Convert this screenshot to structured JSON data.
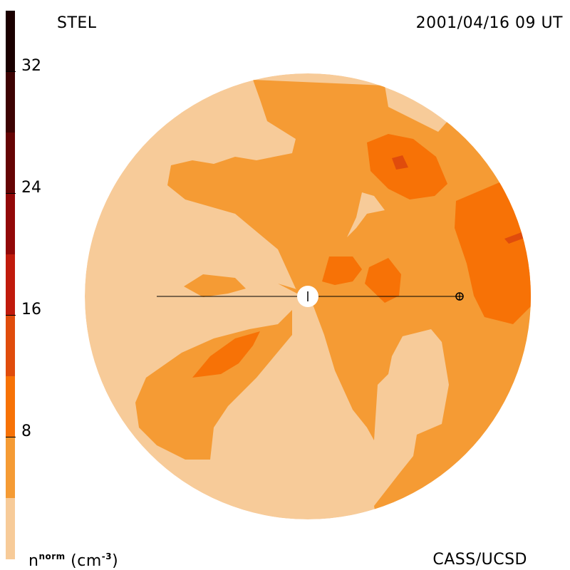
{
  "header": {
    "instrument": "STEL",
    "timestamp": "2001/04/16 09 UT"
  },
  "footer": {
    "credit": "CASS/UCSD",
    "unit_base": "n",
    "unit_sup": "norm",
    "unit_tail": " (cm",
    "unit_exp": "-3",
    "unit_close": ")"
  },
  "colorbar": {
    "ticks": [
      "32",
      "24",
      "16",
      "8"
    ],
    "levels": [
      {
        "from": 0,
        "to": 4,
        "color": "#f7cb99"
      },
      {
        "from": 4,
        "to": 8,
        "color": "#f59b34"
      },
      {
        "from": 8,
        "to": 12,
        "color": "#f77206"
      },
      {
        "from": 12,
        "to": 16,
        "color": "#e04c0c"
      },
      {
        "from": 16,
        "to": 20,
        "color": "#c01a0c"
      },
      {
        "from": 20,
        "to": 24,
        "color": "#920808"
      },
      {
        "from": 24,
        "to": 28,
        "color": "#650404"
      },
      {
        "from": 28,
        "to": 32,
        "color": "#3d0303"
      },
      {
        "from": 32,
        "to": 36,
        "color": "#1a0000"
      }
    ]
  },
  "colors": {
    "level_0_4": "#f7cb99",
    "level_4_8": "#f59b34",
    "level_8_12": "#f77206",
    "level_12_16": "#e04c0c",
    "earth_symbol": "⊕"
  }
}
